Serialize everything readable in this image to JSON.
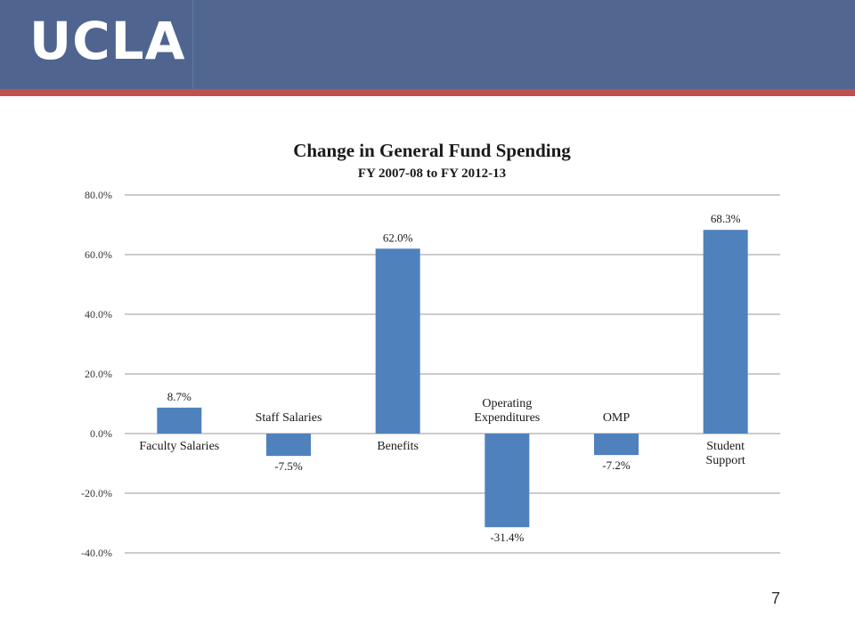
{
  "header": {
    "logo_text": "UCLA",
    "colors": {
      "bar": "#52678f",
      "accent": "#c0504d"
    }
  },
  "page_number": "7",
  "chart_data": {
    "type": "bar",
    "title": "Change in General Fund Spending",
    "subtitle": "FY 2007-08 to FY 2012-13",
    "xlabel": "",
    "ylabel": "",
    "ylim": [
      -40,
      80
    ],
    "yticks": [
      -40,
      -20,
      0,
      20,
      40,
      60,
      80
    ],
    "ytick_labels": [
      "-40.0%",
      "-20.0%",
      "0.0%",
      "20.0%",
      "40.0%",
      "60.0%",
      "80.0%"
    ],
    "grid": true,
    "legend": "none",
    "bar_color": "#4f81bd",
    "categories": [
      [
        "Faculty Salaries"
      ],
      [
        "Staff Salaries"
      ],
      [
        "Benefits"
      ],
      [
        "Operating",
        "Expenditures"
      ],
      [
        "OMP"
      ],
      [
        "Student",
        "Support"
      ]
    ],
    "values": [
      8.7,
      -7.5,
      62.0,
      -31.4,
      -7.2,
      68.3
    ],
    "value_labels": [
      "8.7%",
      "-7.5%",
      "62.0%",
      "-31.4%",
      "-7.2%",
      "68.3%"
    ]
  }
}
